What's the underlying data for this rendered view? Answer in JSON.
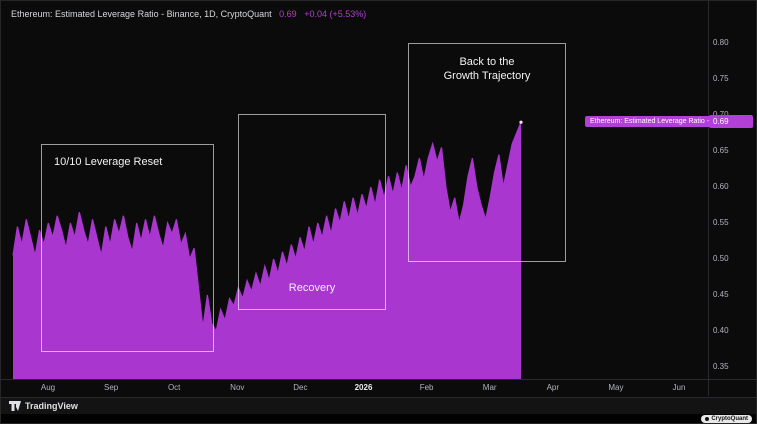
{
  "colors": {
    "background": "#0b0b0b",
    "accent": "#b13fd8",
    "fill": "#a936cf",
    "axis_text": "#b2b5be"
  },
  "header": {
    "title": "Ethereum: Estimated Leverage Ratio - Binance, 1D, CryptoQuant",
    "value": "0.69",
    "change": "+0.04 (+5.53%)"
  },
  "legend": {
    "label": "Ethereum: Estimated Leverage Ratio - ...",
    "price": "0.69"
  },
  "annotations": {
    "box1": "10/10 Leverage Reset",
    "box2": "Recovery",
    "box3_line1": "Back to the",
    "box3_line2": "Growth Trajectory"
  },
  "footer": {
    "brand": "TradingView",
    "attribution": "CryptoQuant"
  },
  "chart_data": {
    "type": "area",
    "title": "Ethereum: Estimated Leverage Ratio",
    "source": "Binance, 1D, CryptoQuant",
    "ylim": [
      0.35,
      0.8
    ],
    "grid": false,
    "legend_position": "right",
    "last_value": 0.69,
    "y_ticks": [
      "0.80",
      "0.75",
      "0.70",
      "0.65",
      "0.60",
      "0.55",
      "0.50",
      "0.45",
      "0.40",
      "0.35"
    ],
    "x_ticks": [
      {
        "label": "Aug"
      },
      {
        "label": "Sep"
      },
      {
        "label": "Oct"
      },
      {
        "label": "Nov"
      },
      {
        "label": "Dec"
      },
      {
        "label": "2026",
        "emphasis": true
      },
      {
        "label": "Feb"
      },
      {
        "label": "Mar"
      },
      {
        "label": "Apr"
      },
      {
        "label": "May"
      },
      {
        "label": "Jun"
      }
    ],
    "values": [
      0.505,
      0.545,
      0.52,
      0.555,
      0.53,
      0.505,
      0.54,
      0.52,
      0.55,
      0.53,
      0.56,
      0.54,
      0.515,
      0.55,
      0.53,
      0.565,
      0.54,
      0.52,
      0.555,
      0.53,
      0.505,
      0.545,
      0.52,
      0.555,
      0.535,
      0.56,
      0.53,
      0.51,
      0.55,
      0.525,
      0.555,
      0.53,
      0.56,
      0.535,
      0.515,
      0.55,
      0.535,
      0.555,
      0.52,
      0.535,
      0.5,
      0.515,
      0.46,
      0.405,
      0.45,
      0.41,
      0.4,
      0.43,
      0.415,
      0.445,
      0.435,
      0.46,
      0.445,
      0.47,
      0.455,
      0.48,
      0.462,
      0.49,
      0.47,
      0.5,
      0.48,
      0.51,
      0.49,
      0.52,
      0.5,
      0.53,
      0.51,
      0.545,
      0.52,
      0.55,
      0.53,
      0.56,
      0.535,
      0.57,
      0.55,
      0.58,
      0.555,
      0.585,
      0.56,
      0.59,
      0.57,
      0.6,
      0.575,
      0.61,
      0.585,
      0.615,
      0.59,
      0.62,
      0.595,
      0.63,
      0.6,
      0.615,
      0.64,
      0.61,
      0.64,
      0.66,
      0.635,
      0.655,
      0.6,
      0.565,
      0.585,
      0.55,
      0.575,
      0.615,
      0.64,
      0.6,
      0.575,
      0.555,
      0.585,
      0.62,
      0.645,
      0.6,
      0.63,
      0.66,
      0.675,
      0.69
    ]
  }
}
